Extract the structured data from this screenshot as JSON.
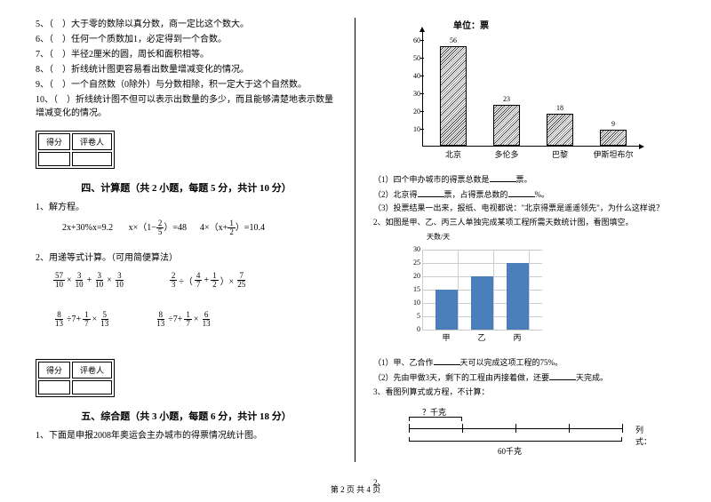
{
  "leftColumn": {
    "judgeItems": [
      {
        "num": "5、",
        "text": "（　）大于零的数除以真分数，商一定比这个数大。"
      },
      {
        "num": "6、",
        "text": "（　）任何一个质数加1，必定得到一个合数。"
      },
      {
        "num": "7、",
        "text": "（　）半径2厘米的圆，周长和面积相等。"
      },
      {
        "num": "8、",
        "text": "（　）折线统计图更容易看出数量增减变化的情况。"
      },
      {
        "num": "9、",
        "text": "（　）一个自然数（0除外）与分数相除，积一定大于这个自然数。"
      },
      {
        "num": "10、",
        "text": "（　）折线统计图不但可以表示出数量的多少，而且能够清楚地表示数量增减变化的情况。"
      }
    ],
    "scoreBox": {
      "col1": "得分",
      "col2": "评卷人"
    },
    "section4": {
      "title": "四、计算题（共 2 小题，每题 5 分，共计 10 分）",
      "q1_label": "1、解方程。",
      "q1_eq1": "2x+30%x=9.2",
      "q1_eq2_prefix": "x×（1−",
      "q1_eq2_frac": {
        "num": "2",
        "den": "5"
      },
      "q1_eq2_suffix": "）=48",
      "q1_eq3_prefix": "4×（x+",
      "q1_eq3_frac": {
        "num": "1",
        "den": "2"
      },
      "q1_eq3_suffix": "）=10.4",
      "q2_label": "2、用递等式计算。（可用简便算法）",
      "fracExprs": {
        "r1c1": [
          {
            "n": "57",
            "d": "10"
          },
          "×",
          {
            "n": "3",
            "d": "10"
          },
          "+",
          {
            "n": "3",
            "d": "10"
          },
          "×",
          {
            "n": "3",
            "d": "10"
          }
        ],
        "r1c2": [
          {
            "n": "2",
            "d": "3"
          },
          "÷（",
          {
            "n": "4",
            "d": "7"
          },
          "+",
          {
            "n": "1",
            "d": "2"
          },
          "）×",
          {
            "n": "7",
            "d": "25"
          }
        ],
        "r2c1": [
          {
            "n": "8",
            "d": "13"
          },
          "÷7+",
          {
            "n": "1",
            "d": "7"
          },
          "×",
          {
            "n": "5",
            "d": "13"
          }
        ],
        "r2c2": [
          {
            "n": "8",
            "d": "13"
          },
          "÷7+",
          {
            "n": "1",
            "d": "7"
          },
          "×",
          {
            "n": "6",
            "d": "13"
          }
        ]
      }
    },
    "section5": {
      "title": "五、综合题（共 3 小题，每题 6 分，共计 18 分）",
      "q1_label": "1、下面是申报2008年奥运会主办城市的得票情况统计图。"
    }
  },
  "rightColumn": {
    "chart1": {
      "title": "单位：票",
      "yMax": 60,
      "yStep": 10,
      "yTicks": [
        10,
        20,
        30,
        40,
        50,
        60
      ],
      "bars": [
        {
          "label": "北京",
          "value": 56,
          "x": 45
        },
        {
          "label": "多伦多",
          "value": 23,
          "x": 105
        },
        {
          "label": "巴黎",
          "value": 18,
          "x": 165
        },
        {
          "label": "伊斯坦布尔",
          "value": 9,
          "x": 225
        }
      ],
      "pxPerUnit": 2.0,
      "barColor": "hatched"
    },
    "chart1_questions": [
      "（1）四个申办城市的得票总数是______票。",
      "（2）北京得______票，占得票总数的______%。",
      "（3）投票结果一出来，报纸、电视都说：\"北京得票是遥遥领先\"，为什么这样说？"
    ],
    "q2_label": "2、如图是甲、乙、丙三人单独完成某项工程所需天数统计图，看图填空。",
    "chart2": {
      "yLabel": "天数/天",
      "yTicks": [
        0,
        5,
        10,
        15,
        20,
        25,
        30
      ],
      "bars": [
        {
          "label": "甲",
          "value": 15,
          "x": 40
        },
        {
          "label": "乙",
          "value": 20,
          "x": 80
        },
        {
          "label": "丙",
          "value": 25,
          "x": 120
        }
      ],
      "pxPerUnit": 3.0,
      "barColor": "#4a7ebb",
      "gridColor": "#cccccc"
    },
    "chart2_questions": [
      "（1）甲、乙合作______天可以完成这项工程的75%。",
      "（2）先由甲做3天，剩下的工程由丙接着做，还要______天完成。"
    ],
    "q3_label": "3、看图列算式或方程，不计算：",
    "diagram": {
      "topLabel": "？千克",
      "bottomLabel": "60千克",
      "sideLabel": "列式："
    },
    "q_trailing": "2、"
  },
  "footer": "第 2 页 共 4 页"
}
